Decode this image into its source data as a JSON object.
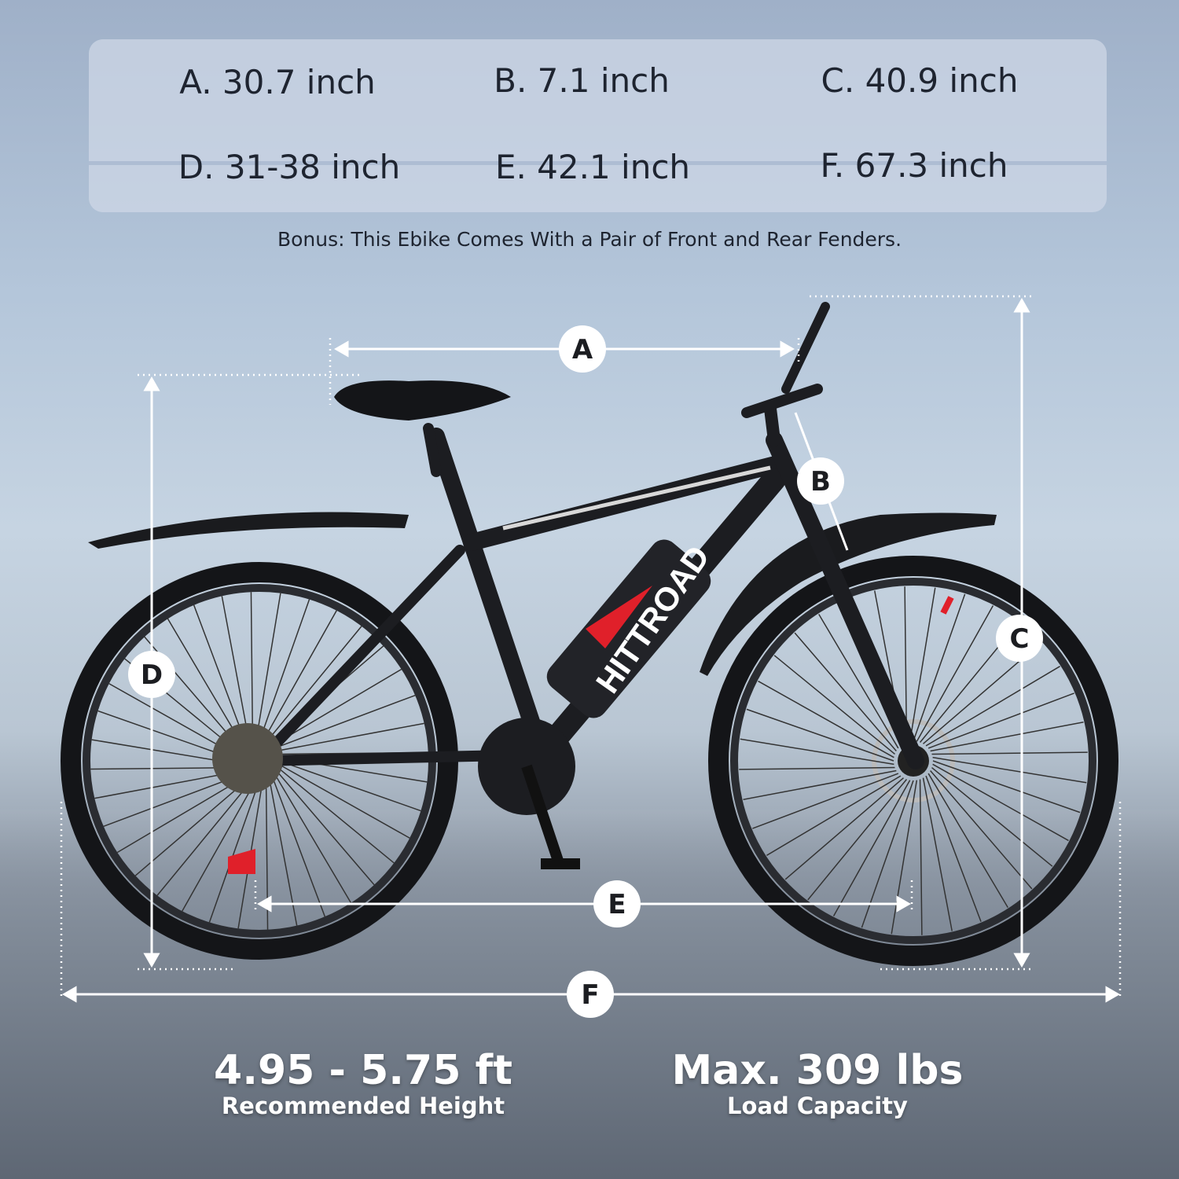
{
  "specs": {
    "row1": [
      "A. 30.7 inch",
      "B. 7.1 inch",
      "C. 40.9 inch"
    ],
    "row2": [
      "D. 31-38 inch",
      "E. 42.1 inch",
      "F. 67.3 inch"
    ]
  },
  "bonus": "Bonus: This Ebike Comes With a Pair of Front and Rear Fenders.",
  "labels": {
    "a": "A",
    "b": "B",
    "c": "C",
    "d": "D",
    "e": "E",
    "f": "F"
  },
  "brand": "HITTROAD",
  "stats": {
    "height_value": "4.95 - 5.75 ft",
    "height_label": "Recommended Height",
    "load_value": "Max. 309 lbs",
    "load_label": "Load Capacity"
  },
  "colors": {
    "accent": "#e0202a",
    "frame": "#1c1d21"
  }
}
